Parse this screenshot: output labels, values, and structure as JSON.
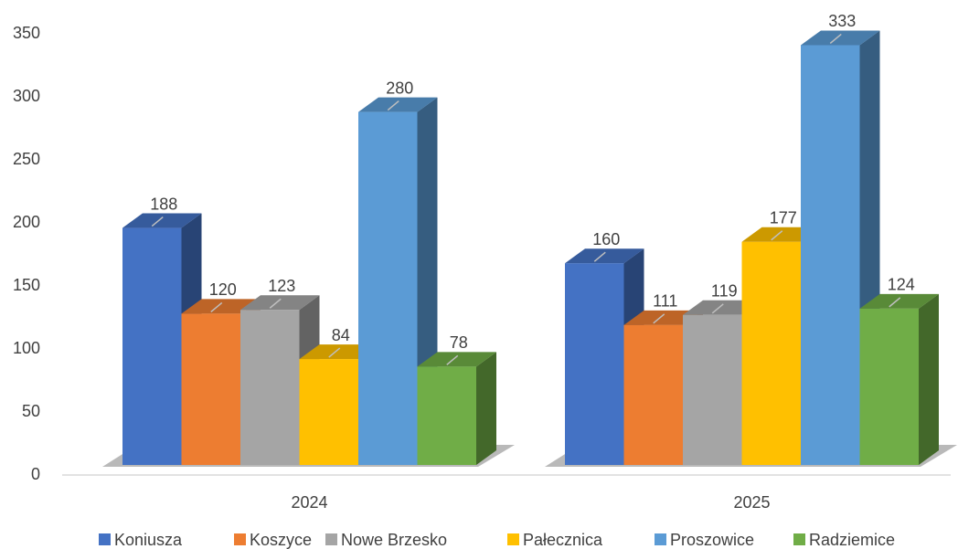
{
  "chart_data": {
    "type": "bar3d",
    "categories": [
      "2024",
      "2025"
    ],
    "series": [
      {
        "name": "Koniusza",
        "color": "#4472c4",
        "values": [
          188,
          160
        ]
      },
      {
        "name": "Koszyce",
        "color": "#ed7d31",
        "values": [
          120,
          111
        ]
      },
      {
        "name": "Nowe Brzesko",
        "color": "#a5a5a5",
        "values": [
          123,
          119
        ]
      },
      {
        "name": "Pałecznica",
        "color": "#ffc000",
        "values": [
          84,
          177
        ]
      },
      {
        "name": "Proszowice",
        "color": "#5b9bd5",
        "values": [
          280,
          333
        ]
      },
      {
        "name": "Radziemice",
        "color": "#70ad47",
        "values": [
          78,
          124
        ]
      }
    ],
    "ylim": [
      0,
      350
    ],
    "yticks": [
      0,
      50,
      100,
      150,
      200,
      250,
      300,
      350
    ],
    "legend": "bottom"
  }
}
